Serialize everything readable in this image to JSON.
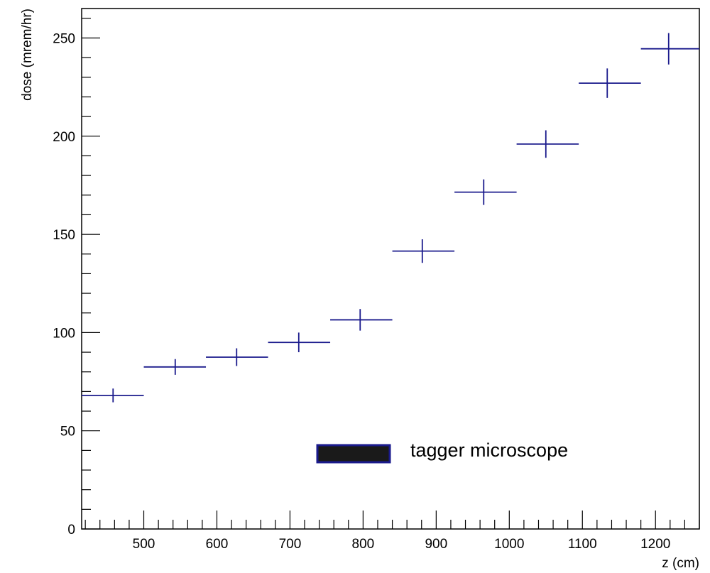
{
  "chart_data": {
    "type": "scatter",
    "style": "histogram-with-error-bars",
    "xlabel": "z (cm)",
    "ylabel": "dose (mrem/hr)",
    "xlim": [
      415,
      1260
    ],
    "ylim": [
      0,
      265
    ],
    "x_ticks": [
      500,
      600,
      700,
      800,
      900,
      1000,
      1100,
      1200
    ],
    "y_ticks": [
      0,
      50,
      100,
      150,
      200,
      250
    ],
    "x_minor_step": 20,
    "y_minor_step": 10,
    "grid": false,
    "series": [
      {
        "name": "tagger microscope",
        "color": "#1a1a8c",
        "points": [
          {
            "x": 458,
            "xlo": 415,
            "xhi": 500,
            "y": 68,
            "err": 3.5
          },
          {
            "x": 543,
            "xlo": 500,
            "xhi": 585,
            "y": 82.5,
            "err": 4
          },
          {
            "x": 627,
            "xlo": 585,
            "xhi": 670,
            "y": 87.5,
            "err": 4.5
          },
          {
            "x": 712,
            "xlo": 670,
            "xhi": 755,
            "y": 95,
            "err": 5
          },
          {
            "x": 796,
            "xlo": 755,
            "xhi": 840,
            "y": 106.5,
            "err": 5.5
          },
          {
            "x": 881,
            "xlo": 840,
            "xhi": 925,
            "y": 141.5,
            "err": 6
          },
          {
            "x": 965,
            "xlo": 925,
            "xhi": 1010,
            "y": 171.5,
            "err": 6.5
          },
          {
            "x": 1050,
            "xlo": 1010,
            "xhi": 1095,
            "y": 196,
            "err": 7
          },
          {
            "x": 1134,
            "xlo": 1095,
            "xhi": 1180,
            "y": 227,
            "err": 7.5
          },
          {
            "x": 1218,
            "xlo": 1180,
            "xhi": 1260,
            "y": 244.5,
            "err": 8
          }
        ]
      }
    ],
    "legend": {
      "position": "lower-right",
      "entries": [
        {
          "label": "tagger microscope",
          "fill": "#1a1a1a",
          "border": "#1a1a8c"
        }
      ]
    }
  }
}
